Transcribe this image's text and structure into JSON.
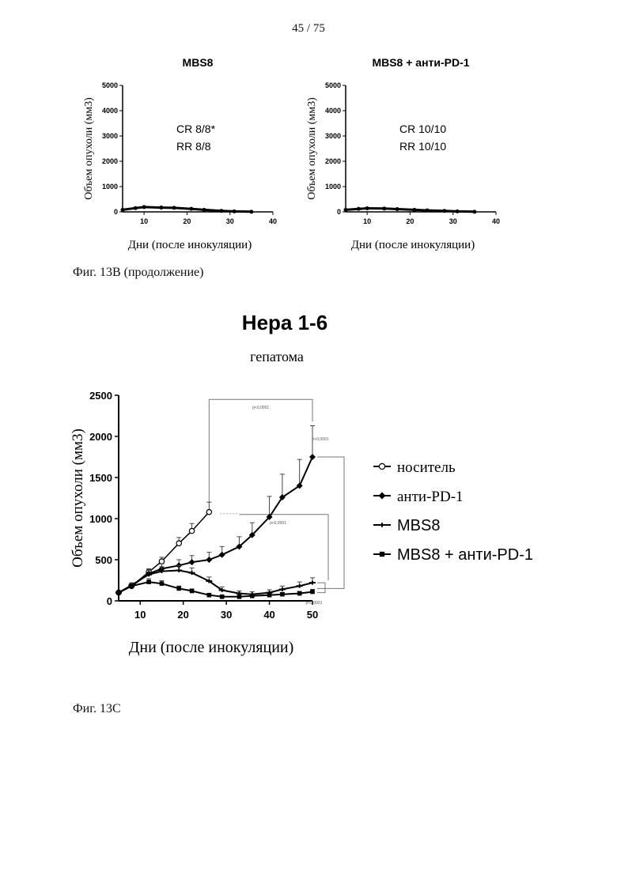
{
  "page": {
    "number": "45 / 75"
  },
  "captions": {
    "fig_b": "Фиг. 13В (продолжение)",
    "fig_c": "Фиг. 13С"
  },
  "chart_data": [
    {
      "type": "line",
      "title": "MBS8",
      "xlabel": "Дни (после инокуляции)",
      "ylabel": "Объем опухоли (мм3)",
      "xlim": [
        5,
        40
      ],
      "ylim": [
        0,
        5000
      ],
      "xticks": [
        10,
        20,
        30,
        40
      ],
      "yticks": [
        0,
        1000,
        2000,
        3000,
        4000,
        5000
      ],
      "annotations": [
        "CR 8/8*",
        "RR 8/8"
      ],
      "x": [
        5,
        8,
        10,
        14,
        17,
        21,
        24,
        28,
        31,
        35
      ],
      "series": [
        {
          "values": [
            80,
            150,
            190,
            170,
            160,
            120,
            80,
            40,
            20,
            5
          ]
        }
      ]
    },
    {
      "type": "line",
      "title": "MBS8 + анти-PD-1",
      "xlabel": "Дни (после инокуляции)",
      "ylabel": "Объем опухоли (мм3)",
      "xlim": [
        5,
        40
      ],
      "ylim": [
        0,
        5000
      ],
      "xticks": [
        10,
        20,
        30,
        40
      ],
      "yticks": [
        0,
        1000,
        2000,
        3000,
        4000,
        5000
      ],
      "annotations": [
        "CR 10/10",
        "RR 10/10"
      ],
      "x": [
        5,
        8,
        10,
        14,
        17,
        21,
        24,
        28,
        31,
        35
      ],
      "series": [
        {
          "values": [
            80,
            120,
            140,
            130,
            110,
            80,
            60,
            40,
            20,
            5
          ]
        }
      ]
    },
    {
      "type": "line",
      "title": "Hepa 1-6",
      "subtitle": "гепатома",
      "xlabel": "Дни (после инокуляции)",
      "ylabel": "Объем опухоли (мм3)",
      "xlim": [
        5,
        50
      ],
      "ylim": [
        0,
        2500
      ],
      "xticks": [
        10,
        20,
        30,
        40,
        50
      ],
      "yticks": [
        0,
        500,
        1000,
        1500,
        2000,
        2500
      ],
      "legend_position": "right",
      "x": [
        5,
        8,
        12,
        15,
        19,
        22,
        26,
        29,
        33,
        36,
        40,
        43,
        47,
        50
      ],
      "series": [
        {
          "name": "носитель",
          "marker": "open-circle",
          "values": [
            100,
            180,
            350,
            480,
            700,
            850,
            1080,
            null,
            null,
            null,
            null,
            null,
            null,
            null
          ],
          "errors": [
            20,
            30,
            40,
            50,
            70,
            90,
            120,
            null,
            null,
            null,
            null,
            null,
            null,
            null
          ]
        },
        {
          "name": "анти-PD-1",
          "marker": "diamond",
          "values": [
            100,
            180,
            330,
            390,
            430,
            470,
            500,
            560,
            660,
            800,
            1020,
            1260,
            1400,
            1750
          ],
          "errors": [
            20,
            30,
            50,
            60,
            70,
            80,
            90,
            100,
            120,
            150,
            250,
            280,
            320,
            380
          ]
        },
        {
          "name": "MBS8",
          "marker": "cross",
          "values": [
            100,
            190,
            320,
            360,
            370,
            340,
            240,
            130,
            90,
            80,
            100,
            140,
            180,
            220
          ],
          "errors": [
            20,
            30,
            50,
            55,
            60,
            60,
            50,
            40,
            30,
            30,
            35,
            40,
            50,
            60
          ]
        },
        {
          "name": "MBS8 + анти-PD-1",
          "marker": "filled-square",
          "values": [
            100,
            180,
            230,
            210,
            150,
            120,
            70,
            50,
            50,
            60,
            70,
            80,
            90,
            110
          ],
          "errors": [
            15,
            25,
            40,
            35,
            30,
            25,
            20,
            15,
            15,
            15,
            20,
            20,
            25,
            30
          ]
        }
      ],
      "significance": [
        "p<0,0001",
        "p<0,0001",
        "p<0,0001",
        "p<0,0001"
      ]
    }
  ]
}
